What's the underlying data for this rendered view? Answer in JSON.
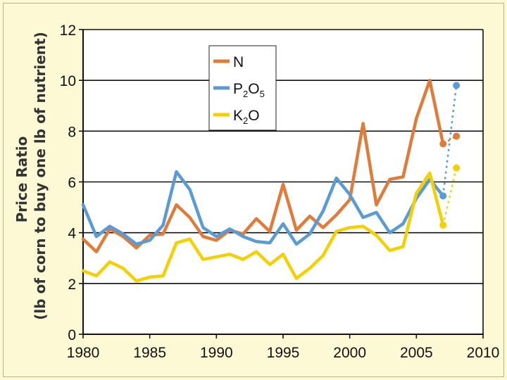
{
  "chart_data": {
    "type": "line",
    "ylabel": "Price Ratio",
    "ylabel_sub": "(lb of corn to buy one lb of nutrient)",
    "xlim": [
      1980,
      2010
    ],
    "ylim": [
      0,
      12
    ],
    "xticks": [
      1980,
      1985,
      1990,
      1995,
      2000,
      2005,
      2010
    ],
    "yticks": [
      0,
      2,
      4,
      6,
      8,
      10,
      12
    ],
    "grid": "horizontal",
    "legend_position": "top-center",
    "series": [
      {
        "name": "N",
        "legend_main": "N",
        "legend_sub": "",
        "legend_tail": "",
        "color": "#e07b39",
        "x": [
          1980,
          1981,
          1982,
          1983,
          1984,
          1985,
          1986,
          1987,
          1988,
          1989,
          1990,
          1991,
          1992,
          1993,
          1994,
          1995,
          1996,
          1997,
          1998,
          1999,
          2000,
          2001,
          2002,
          2003,
          2004,
          2005,
          2006,
          2007
        ],
        "values": [
          3.75,
          3.25,
          4.15,
          3.85,
          3.4,
          3.9,
          3.95,
          5.1,
          4.6,
          3.85,
          3.7,
          4.1,
          3.95,
          4.55,
          4.05,
          5.9,
          4.1,
          4.65,
          4.2,
          4.7,
          5.3,
          8.3,
          5.1,
          6.1,
          6.2,
          8.5,
          10.0,
          7.5
        ],
        "projection_values": [
          7.8
        ]
      },
      {
        "name": "P2O5",
        "legend_main": "P",
        "legend_sub": "2",
        "legend_tail": "O",
        "legend_sub2": "5",
        "color": "#5b9bd5",
        "x": [
          1980,
          1981,
          1982,
          1983,
          1984,
          1985,
          1986,
          1987,
          1988,
          1989,
          1990,
          1991,
          1992,
          1993,
          1994,
          1995,
          1996,
          1997,
          1998,
          1999,
          2000,
          2001,
          2002,
          2003,
          2004,
          2005,
          2006,
          2007
        ],
        "values": [
          5.1,
          3.85,
          4.25,
          3.95,
          3.55,
          3.7,
          4.3,
          6.4,
          5.7,
          4.2,
          3.85,
          4.15,
          3.85,
          3.65,
          3.6,
          4.35,
          3.55,
          3.95,
          4.85,
          6.15,
          5.5,
          4.6,
          4.8,
          4.0,
          4.35,
          5.35,
          6.1,
          5.45
        ],
        "projection_values": [
          9.8
        ]
      },
      {
        "name": "K2O",
        "legend_main": "K",
        "legend_sub": "2",
        "legend_tail": "O",
        "legend_sub2": "",
        "color": "#f5d000",
        "x": [
          1980,
          1981,
          1982,
          1983,
          1984,
          1985,
          1986,
          1987,
          1988,
          1989,
          1990,
          1991,
          1992,
          1993,
          1994,
          1995,
          1996,
          1997,
          1998,
          1999,
          2000,
          2001,
          2002,
          2003,
          2004,
          2005,
          2006,
          2007
        ],
        "values": [
          2.5,
          2.3,
          2.85,
          2.6,
          2.1,
          2.25,
          2.3,
          3.6,
          3.75,
          2.95,
          3.05,
          3.15,
          2.95,
          3.25,
          2.75,
          3.15,
          2.2,
          2.6,
          3.1,
          4.05,
          4.2,
          4.25,
          3.9,
          3.3,
          3.45,
          5.55,
          6.35,
          4.3
        ],
        "projection_values": [
          6.55
        ]
      }
    ],
    "projection_x": [
      2008
    ]
  }
}
